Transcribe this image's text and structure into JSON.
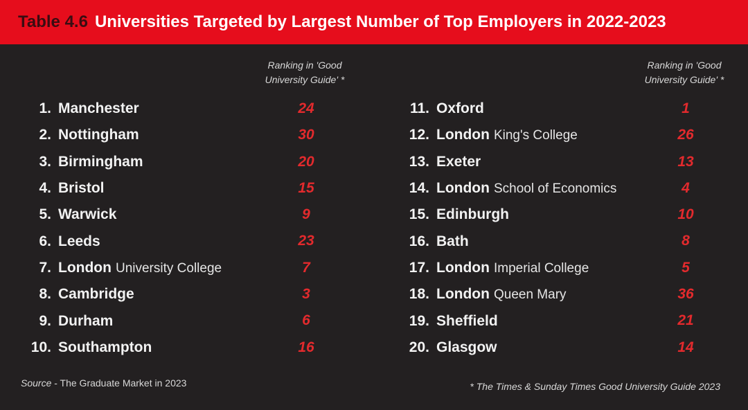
{
  "header": {
    "table_number": "Table 4.6",
    "title": "Universities Targeted by Largest Number of Top Employers in 2022-2023"
  },
  "column_heading": "Ranking in 'Good\nUniversity Guide' *",
  "columns": [
    [
      {
        "num": "1.",
        "name": "Manchester",
        "sub": "",
        "rank": "24"
      },
      {
        "num": "2.",
        "name": "Nottingham",
        "sub": "",
        "rank": "30"
      },
      {
        "num": "3.",
        "name": "Birmingham",
        "sub": "",
        "rank": "20"
      },
      {
        "num": "4.",
        "name": "Bristol",
        "sub": "",
        "rank": "15"
      },
      {
        "num": "5.",
        "name": "Warwick",
        "sub": "",
        "rank": "9"
      },
      {
        "num": "6.",
        "name": "Leeds",
        "sub": "",
        "rank": "23"
      },
      {
        "num": "7.",
        "name": "London",
        "sub": "University College",
        "rank": "7"
      },
      {
        "num": "8.",
        "name": "Cambridge",
        "sub": "",
        "rank": "3"
      },
      {
        "num": "9.",
        "name": "Durham",
        "sub": "",
        "rank": "6"
      },
      {
        "num": "10.",
        "name": "Southampton",
        "sub": "",
        "rank": "16"
      }
    ],
    [
      {
        "num": "11.",
        "name": "Oxford",
        "sub": "",
        "rank": "1"
      },
      {
        "num": "12.",
        "name": "London",
        "sub": "King's College",
        "rank": "26"
      },
      {
        "num": "13.",
        "name": "Exeter",
        "sub": "",
        "rank": "13"
      },
      {
        "num": "14.",
        "name": "London",
        "sub": "School of Economics",
        "rank": "4"
      },
      {
        "num": "15.",
        "name": "Edinburgh",
        "sub": "",
        "rank": "10"
      },
      {
        "num": "16.",
        "name": "Bath",
        "sub": "",
        "rank": "8"
      },
      {
        "num": "17.",
        "name": "London",
        "sub": "Imperial College",
        "rank": "5"
      },
      {
        "num": "18.",
        "name": "London",
        "sub": "Queen Mary",
        "rank": "36"
      },
      {
        "num": "19.",
        "name": "Sheffield",
        "sub": "",
        "rank": "21"
      },
      {
        "num": "20.",
        "name": "Glasgow",
        "sub": "",
        "rank": "14"
      }
    ]
  ],
  "footer": {
    "source_label": "Source",
    "source_text": " - The Graduate Market in 2023",
    "footnote": "* The Times & Sunday Times Good University Guide 2023"
  },
  "colors": {
    "banner": "#e60d1c",
    "background": "#232021",
    "rank": "#e32a2d"
  }
}
